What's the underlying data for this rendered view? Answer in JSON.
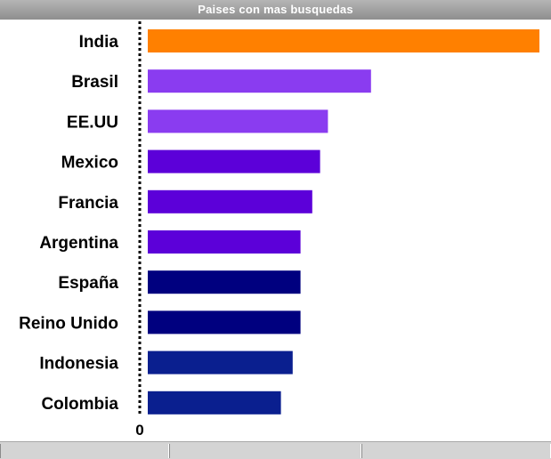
{
  "window": {
    "title": "Paises con mas busquedas"
  },
  "chart_data": {
    "type": "bar",
    "orientation": "horizontal",
    "title": "Paises con mas busquedas",
    "categories": [
      "India",
      "Brasil",
      "EE.UU",
      "Mexico",
      "Francia",
      "Argentina",
      "España",
      "Reino Unido",
      "Indonesia",
      "Colombia"
    ],
    "values": [
      100,
      57,
      46,
      44,
      42,
      39,
      39,
      39,
      37,
      34
    ],
    "colors": [
      "#ff8000",
      "#8a3cf0",
      "#8a3cf0",
      "#5c00d9",
      "#5c00d9",
      "#5c00d9",
      "#00007f",
      "#00007f",
      "#0a1f8f",
      "#0a1f8f"
    ],
    "xlim": [
      0,
      100
    ],
    "zero_label": "0",
    "grid": false,
    "legend": "none"
  }
}
